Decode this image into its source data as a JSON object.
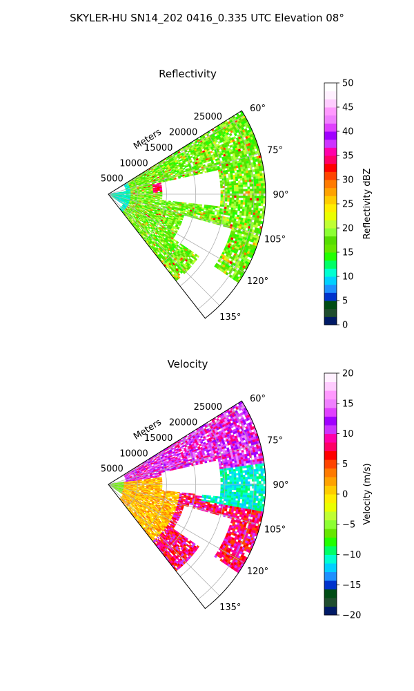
{
  "figure": {
    "title": "SKYLER-HU  SN14_202  0416_0.335 UTC Elevation 08°"
  },
  "chart_data": [
    {
      "type": "heatmap",
      "title": "Reflectivity",
      "range_label": "Meters",
      "range_ticks": [
        "5000",
        "10000",
        "15000",
        "20000",
        "25000"
      ],
      "range_values": [
        5000,
        10000,
        15000,
        20000,
        25000
      ],
      "range_max": 27000,
      "azimuth_ticks": [
        "60°",
        "75°",
        "90°",
        "105°",
        "120°",
        "135°"
      ],
      "azimuth_values": [
        60,
        75,
        90,
        105,
        120,
        135
      ],
      "azimuth_range": [
        58,
        142
      ],
      "colorbar": {
        "label": "Reflectivity dBZ",
        "min": 0,
        "max": 50,
        "ticks": [
          "0",
          "5",
          "10",
          "15",
          "20",
          "25",
          "30",
          "35",
          "40",
          "45",
          "50"
        ],
        "tick_values": [
          0,
          5,
          10,
          15,
          20,
          25,
          30,
          35,
          40,
          45,
          50
        ],
        "colors": [
          "#001a66",
          "#1f4d2e",
          "#004c14",
          "#0033cc",
          "#1e90ff",
          "#00d0ff",
          "#00ffd0",
          "#00ff66",
          "#22ff00",
          "#66e600",
          "#55dd00",
          "#8cff33",
          "#bfff33",
          "#eaff00",
          "#ffee00",
          "#ffcc00",
          "#ffa200",
          "#ff7a00",
          "#ff4400",
          "#ff0000",
          "#ff0066",
          "#ff00aa",
          "#cc33ff",
          "#a000ff",
          "#e040ff",
          "#f080ff",
          "#ff99ff",
          "#ffccff",
          "#fff0ff",
          "#ffffff"
        ]
      }
    },
    {
      "type": "heatmap",
      "title": "Velocity",
      "range_label": "Meters",
      "range_ticks": [
        "5000",
        "10000",
        "15000",
        "20000",
        "25000"
      ],
      "range_values": [
        5000,
        10000,
        15000,
        20000,
        25000
      ],
      "range_max": 27000,
      "azimuth_ticks": [
        "60°",
        "75°",
        "90°",
        "105°",
        "120°",
        "135°"
      ],
      "azimuth_values": [
        60,
        75,
        90,
        105,
        120,
        135
      ],
      "azimuth_range": [
        58,
        142
      ],
      "colorbar": {
        "label": "Velocity (m/s)",
        "min": -20,
        "max": 20,
        "ticks": [
          "−20",
          "−15",
          "−10",
          "−5",
          "0",
          "5",
          "10",
          "15",
          "20"
        ],
        "tick_values": [
          -20,
          -15,
          -10,
          -5,
          0,
          5,
          10,
          15,
          20
        ],
        "colors": [
          "#001a66",
          "#1f4d2e",
          "#004c14",
          "#0033cc",
          "#1e90ff",
          "#00d0ff",
          "#00ffd0",
          "#00ff66",
          "#22ff00",
          "#66e600",
          "#8cff33",
          "#bfff33",
          "#eaff00",
          "#ffee00",
          "#ffcc00",
          "#ffa200",
          "#ff7a00",
          "#ff4400",
          "#ff0000",
          "#ff0066",
          "#ff00aa",
          "#cc33ff",
          "#a000ff",
          "#e040ff",
          "#f080ff",
          "#ff99ff",
          "#ffccff",
          "#fff0ff"
        ]
      }
    }
  ]
}
